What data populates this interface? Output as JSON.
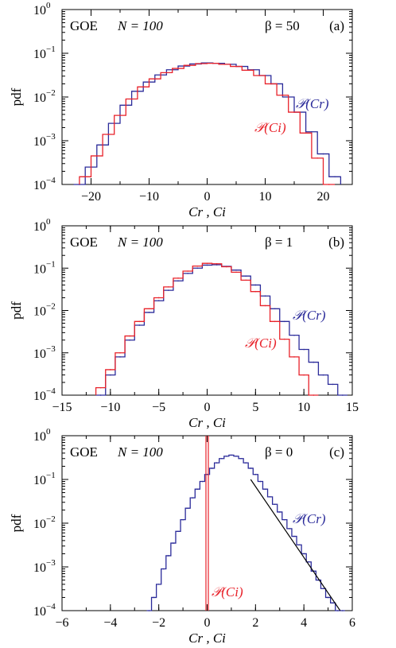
{
  "colors": {
    "blue": "#2b2b9a",
    "red": "#e8222a",
    "black": "#000000"
  },
  "chart_data": [
    {
      "type": "line",
      "panel": "(a)",
      "ensemble": "GOE",
      "n_label": "N = 100",
      "beta_label": "β = 50",
      "xlabel": "Cr , Ci",
      "ylabel": "pdf",
      "yscale": "log",
      "xlim": [
        -25,
        25
      ],
      "ylim": [
        0.0001,
        1
      ],
      "xticks": [
        -20,
        -10,
        0,
        10,
        20
      ],
      "xtick_labels": [
        "−20",
        "−10",
        "0",
        "10",
        "20"
      ],
      "ytick_labels": [
        "10",
        "10",
        "10",
        "10",
        "10"
      ],
      "ytick_exps": [
        "0",
        "−1",
        "−2",
        "−3",
        "−4"
      ],
      "series": [
        {
          "name": "𝒫(Cr)",
          "color": "#2b2b9a",
          "x": [
            -22,
            -20,
            -18,
            -16,
            -14,
            -12,
            -10,
            -8,
            -6,
            -4,
            -2,
            0,
            2,
            4,
            6,
            8,
            10,
            12,
            14,
            16,
            18,
            20,
            22
          ],
          "y": [
            0.0001,
            0.00025,
            0.0008,
            0.0025,
            0.0065,
            0.0135,
            0.022,
            0.032,
            0.042,
            0.051,
            0.057,
            0.06,
            0.059,
            0.056,
            0.05,
            0.042,
            0.031,
            0.02,
            0.01,
            0.0045,
            0.0016,
            0.0005,
            0.00015
          ]
        },
        {
          "name": "𝒫(Ci)",
          "color": "#e8222a",
          "x": [
            -21,
            -19,
            -17,
            -15,
            -13,
            -11,
            -9,
            -7,
            -5,
            -3,
            -1,
            1,
            3,
            5,
            7,
            9,
            11,
            13,
            15,
            17,
            19,
            21
          ],
          "y": [
            0.00015,
            0.00045,
            0.0014,
            0.0038,
            0.009,
            0.017,
            0.026,
            0.036,
            0.045,
            0.053,
            0.058,
            0.059,
            0.056,
            0.05,
            0.041,
            0.031,
            0.02,
            0.011,
            0.0045,
            0.0015,
            0.0004,
            0.0001
          ]
        }
      ]
    },
    {
      "type": "line",
      "panel": "(b)",
      "ensemble": "GOE",
      "n_label": "N = 100",
      "beta_label": "β = 1",
      "xlabel": "Cr , Ci",
      "ylabel": "pdf",
      "yscale": "log",
      "xlim": [
        -15,
        15
      ],
      "ylim": [
        0.0001,
        1
      ],
      "xticks": [
        -15,
        -10,
        -5,
        0,
        5,
        10,
        15
      ],
      "xtick_labels": [
        "−15",
        "−10",
        "−5",
        "0",
        "5",
        "10",
        "15"
      ],
      "ytick_labels": [
        "10",
        "10",
        "10",
        "10",
        "10"
      ],
      "ytick_exps": [
        "0",
        "−1",
        "−2",
        "−3",
        "−4"
      ],
      "series": [
        {
          "name": "𝒫(Cr)",
          "color": "#2b2b9a",
          "x": [
            -11,
            -10,
            -9,
            -8,
            -7,
            -6,
            -5,
            -4,
            -3,
            -2,
            -1,
            0,
            1,
            2,
            3,
            4,
            5,
            6,
            7,
            8,
            9,
            10,
            11,
            12,
            13,
            14
          ],
          "y": [
            0.0001,
            0.0003,
            0.0008,
            0.002,
            0.0045,
            0.009,
            0.017,
            0.03,
            0.05,
            0.075,
            0.1,
            0.118,
            0.12,
            0.11,
            0.09,
            0.065,
            0.04,
            0.022,
            0.011,
            0.0055,
            0.0026,
            0.0012,
            0.0006,
            0.0003,
            0.00018,
            0.0001
          ]
        },
        {
          "name": "𝒫(Ci)",
          "color": "#e8222a",
          "x": [
            -11,
            -10,
            -9,
            -8,
            -7,
            -6,
            -5,
            -4,
            -3,
            -2,
            -1,
            0,
            1,
            2,
            3,
            4,
            5,
            6,
            7,
            8,
            9,
            10,
            11
          ],
          "y": [
            0.00015,
            0.0004,
            0.001,
            0.0025,
            0.0055,
            0.011,
            0.02,
            0.036,
            0.058,
            0.085,
            0.112,
            0.13,
            0.127,
            0.108,
            0.08,
            0.052,
            0.028,
            0.013,
            0.0055,
            0.0021,
            0.0008,
            0.0003,
            0.0001
          ]
        }
      ]
    },
    {
      "type": "line",
      "panel": "(c)",
      "ensemble": "GOE",
      "n_label": "N = 100",
      "beta_label": "β = 0",
      "xlabel": "Cr , Ci",
      "ylabel": "pdf",
      "yscale": "log",
      "xlim": [
        -6,
        6
      ],
      "ylim": [
        0.0001,
        1
      ],
      "xticks": [
        -6,
        -4,
        -2,
        0,
        2,
        4,
        6
      ],
      "xtick_labels": [
        "−6",
        "−4",
        "−2",
        "0",
        "2",
        "4",
        "6"
      ],
      "ytick_labels": [
        "10",
        "10",
        "10",
        "10",
        "10"
      ],
      "ytick_exps": [
        "0",
        "−1",
        "−2",
        "−3",
        "−4"
      ],
      "series": [
        {
          "name": "𝒫(Cr)",
          "color": "#2b2b9a",
          "x": [
            -2.4,
            -2.2,
            -2,
            -1.8,
            -1.6,
            -1.4,
            -1.2,
            -1,
            -0.8,
            -0.6,
            -0.4,
            -0.2,
            0,
            0.2,
            0.4,
            0.6,
            0.8,
            1,
            1.2,
            1.4,
            1.6,
            1.8,
            2,
            2.2,
            2.4,
            2.6,
            2.8,
            3,
            3.2,
            3.4,
            3.6,
            3.8,
            4,
            4.2,
            4.4,
            4.6,
            4.8,
            5,
            5.2,
            5.4,
            5.6
          ],
          "y": [
            0.0001,
            0.0002,
            0.0004,
            0.0009,
            0.0018,
            0.0035,
            0.0065,
            0.012,
            0.022,
            0.038,
            0.06,
            0.09,
            0.13,
            0.18,
            0.24,
            0.3,
            0.34,
            0.36,
            0.34,
            0.3,
            0.24,
            0.18,
            0.13,
            0.09,
            0.06,
            0.04,
            0.027,
            0.018,
            0.012,
            0.0075,
            0.005,
            0.0032,
            0.002,
            0.0013,
            0.0008,
            0.0005,
            0.00032,
            0.0002,
            0.00015,
            0.0001,
            0.0001
          ]
        },
        {
          "name": "𝒫(Ci)",
          "color": "#e8222a",
          "x": [
            -0.05,
            0.05
          ],
          "y": [
            1,
            1
          ],
          "note": "delta peak at Ci = 0"
        },
        {
          "name": "",
          "color": "#000000",
          "x": [
            1.8,
            5.5
          ],
          "y": [
            0.1,
            0.0001
          ],
          "style": "straight line"
        }
      ]
    }
  ]
}
